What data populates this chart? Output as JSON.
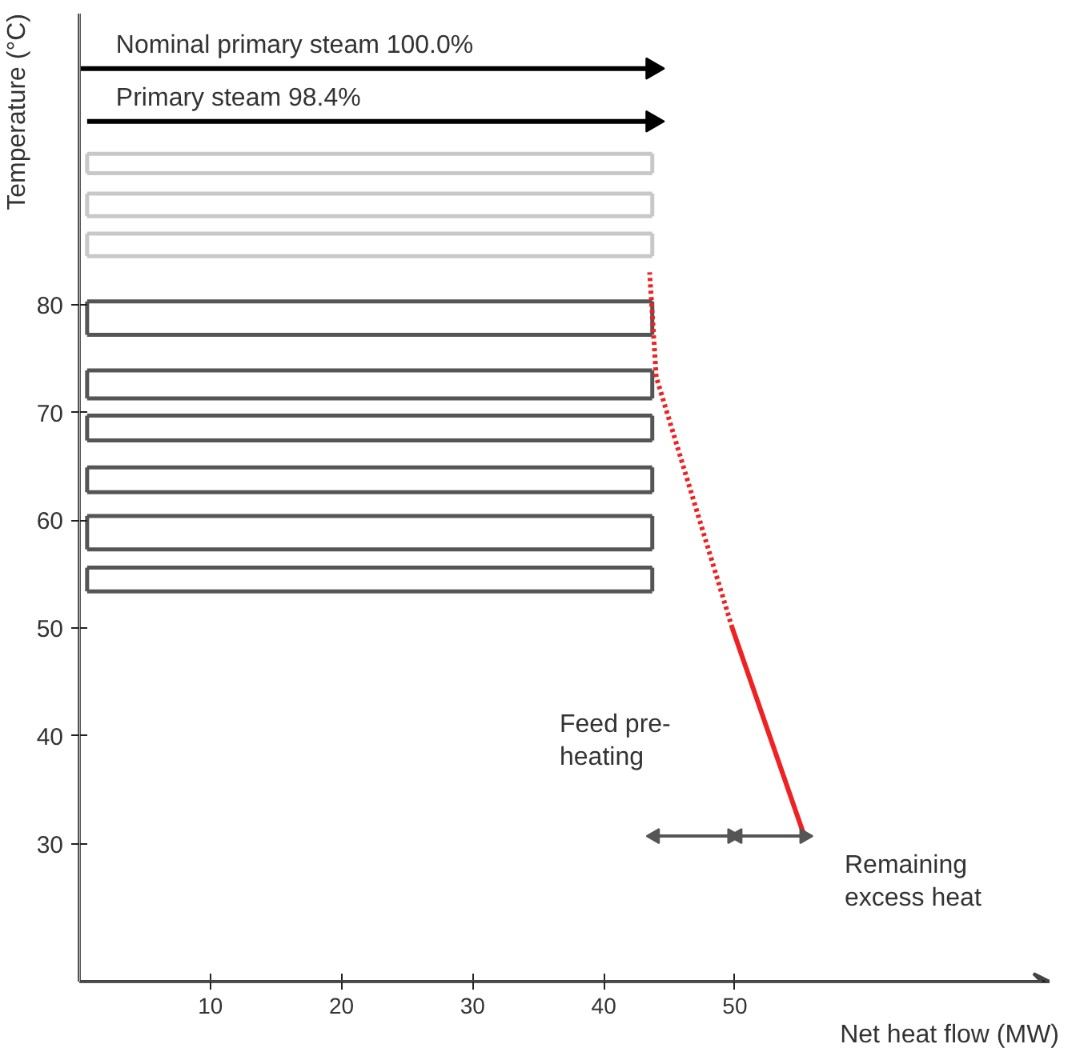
{
  "chart_data": {
    "type": "line",
    "xlabel": "Net heat flow (MW)",
    "ylabel": "Temperature (°C)",
    "xlim": [
      0,
      74
    ],
    "ylim": [
      17.2,
      107
    ],
    "xticks": [
      10,
      20,
      30,
      40,
      50
    ],
    "yticks": [
      30,
      40,
      50,
      60,
      70,
      80
    ],
    "grid": false,
    "marker": "none",
    "series": [
      {
        "color": "#c8c8c8",
        "x": [
          0.6,
          43.7
        ],
        "values": [
          94.0,
          94.0
        ],
        "errors": [
          [
            92.2,
            94.0
          ],
          [
            92.2,
            94.0
          ]
        ]
      },
      {
        "color": "#c8c8c8",
        "x": [
          0.6,
          43.7
        ],
        "values": [
          92.2,
          92.2
        ]
      },
      {
        "color": "#c8c8c8",
        "x": [
          0.6,
          43.7
        ],
        "values": [
          90.3,
          90.3
        ],
        "errors": [
          [
            88.2,
            90.3
          ],
          [
            88.2,
            90.3
          ]
        ]
      },
      {
        "color": "#c8c8c8",
        "x": [
          0.6,
          43.7
        ],
        "values": [
          88.2,
          88.2
        ]
      },
      {
        "color": "#c8c8c8",
        "x": [
          0.6,
          43.7
        ],
        "values": [
          86.6,
          86.6
        ],
        "errors": [
          [
            84.5,
            86.6
          ],
          [
            84.5,
            86.6
          ]
        ]
      },
      {
        "color": "#c8c8c8",
        "x": [
          0.6,
          43.7
        ],
        "values": [
          84.5,
          84.5
        ]
      },
      {
        "color": "#555555",
        "x": [
          0.6,
          43.7
        ],
        "values": [
          80.3,
          80.3
        ],
        "errors": [
          [
            77.2,
            80.3
          ],
          [
            77.2,
            80.3
          ]
        ]
      },
      {
        "color": "#555555",
        "x": [
          0.6,
          43.7
        ],
        "values": [
          77.2,
          77.2
        ]
      },
      {
        "color": "#555555",
        "x": [
          0.6,
          43.7
        ],
        "values": [
          73.9,
          73.9
        ],
        "errors": [
          [
            71.3,
            73.9
          ],
          [
            71.3,
            73.9
          ]
        ]
      },
      {
        "color": "#555555",
        "x": [
          0.6,
          43.7
        ],
        "values": [
          71.3,
          71.3
        ]
      },
      {
        "color": "#555555",
        "x": [
          0.6,
          43.7
        ],
        "values": [
          69.7,
          69.7
        ],
        "errors": [
          [
            67.4,
            69.7
          ],
          [
            67.4,
            69.7
          ]
        ]
      },
      {
        "color": "#555555",
        "x": [
          0.6,
          43.7
        ],
        "values": [
          67.4,
          67.4
        ]
      },
      {
        "color": "#555555",
        "x": [
          0.6,
          43.7
        ],
        "values": [
          64.9,
          64.9
        ],
        "errors": [
          [
            62.6,
            64.9
          ],
          [
            62.6,
            64.9
          ]
        ]
      },
      {
        "color": "#555555",
        "x": [
          0.6,
          43.7
        ],
        "values": [
          62.6,
          62.6
        ]
      },
      {
        "color": "#555555",
        "x": [
          0.6,
          43.7
        ],
        "values": [
          60.4,
          60.4
        ],
        "errors": [
          [
            57.3,
            60.4
          ],
          [
            57.3,
            60.4
          ]
        ]
      },
      {
        "color": "#555555",
        "x": [
          0.6,
          43.7
        ],
        "values": [
          57.3,
          57.3
        ]
      },
      {
        "color": "#555555",
        "x": [
          0.6,
          43.7
        ],
        "values": [
          55.6,
          55.6
        ],
        "errors": [
          [
            53.4,
            55.6
          ],
          [
            53.4,
            55.6
          ]
        ]
      },
      {
        "color": "#555555",
        "x": [
          0.6,
          43.7
        ],
        "values": [
          53.4,
          53.4
        ]
      },
      {
        "color": "#ee2222",
        "line_style": "solid",
        "x": [
          55.3,
          49.8
        ],
        "values": [
          30.7,
          50.0
        ]
      },
      {
        "color": "#ee2222",
        "line_style": "dotted",
        "x": [
          49.8,
          44.0,
          43.5
        ],
        "values": [
          50.0,
          73.3,
          83.0
        ]
      },
      {
        "color": "#000000",
        "marker": "triangle",
        "x": [
          0,
          43.7
        ],
        "values": [
          101.9,
          101.9
        ]
      },
      {
        "color": "#000000",
        "marker": "triangle",
        "x": [
          0.6,
          43.7
        ],
        "values": [
          97.0,
          97.0
        ]
      },
      {
        "color": "#555555",
        "marker": "triangle",
        "x": [
          43.9,
          49.8
        ],
        "values": [
          30.7,
          30.7
        ]
      },
      {
        "color": "#555555",
        "marker": "triangle",
        "x": [
          50.2,
          55.3
        ],
        "values": [
          30.7,
          30.7
        ]
      }
    ],
    "annotations": [
      {
        "text": "Nominal primary steam 100.0%",
        "x": 2.8,
        "y": 101.9
      },
      {
        "text": "Primary steam 98.4%",
        "x": 2.8,
        "y": 97.0
      },
      "Feed pre-\nheating",
      "Remaining\nexcess heat"
    ]
  }
}
